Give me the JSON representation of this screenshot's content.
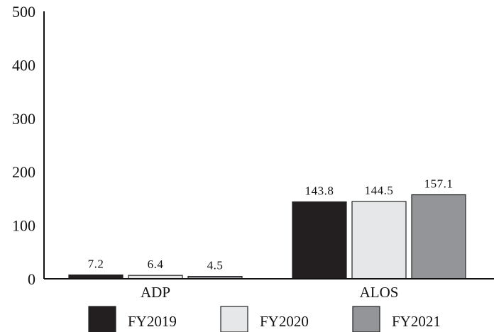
{
  "chart_data": {
    "type": "bar",
    "categories": [
      "ADP",
      "ALOS"
    ],
    "series": [
      {
        "name": "FY2019",
        "values": [
          7.2,
          143.8
        ],
        "labels": [
          "7.2",
          "143.8"
        ],
        "color": "#231f20"
      },
      {
        "name": "FY2020",
        "values": [
          6.4,
          144.5
        ],
        "labels": [
          "6.4",
          "144.5"
        ],
        "color": "#e6e7e8"
      },
      {
        "name": "FY2021",
        "values": [
          4.5,
          157.1
        ],
        "labels": [
          "4.5",
          "157.1"
        ],
        "color": "#939598"
      }
    ],
    "y_ticks": [
      "0",
      "100",
      "200",
      "300",
      "400",
      "500"
    ],
    "ylim": [
      0,
      500
    ],
    "grid": false,
    "legend_position": "bottom"
  }
}
